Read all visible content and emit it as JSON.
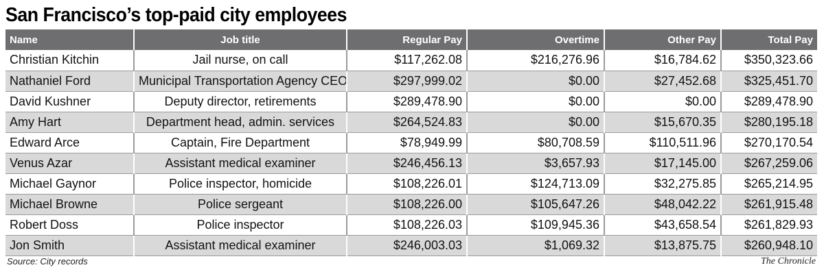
{
  "title": "San Francisco’s top-paid city employees",
  "table": {
    "headers": {
      "name": "Name",
      "job_title": "Job title",
      "regular_pay": "Regular Pay",
      "overtime": "Overtime",
      "other_pay": "Other Pay",
      "total_pay": "Total Pay"
    },
    "rows": [
      {
        "name": "Christian Kitchin",
        "job_title": "Jail nurse, on call",
        "regular_pay": "$117,262.08",
        "overtime": "$216,276.96",
        "other_pay": "$16,784.62",
        "total_pay": "$350,323.66"
      },
      {
        "name": "Nathaniel Ford",
        "job_title": "Municipal Transportation Agency CEO",
        "regular_pay": "$297,999.02",
        "overtime": "$0.00",
        "other_pay": "$27,452.68",
        "total_pay": "$325,451.70"
      },
      {
        "name": "David Kushner",
        "job_title": "Deputy director, retirements",
        "regular_pay": "$289,478.90",
        "overtime": "$0.00",
        "other_pay": "$0.00",
        "total_pay": "$289,478.90"
      },
      {
        "name": "Amy Hart",
        "job_title": "Department head, admin. services",
        "regular_pay": "$264,524.83",
        "overtime": "$0.00",
        "other_pay": "$15,670.35",
        "total_pay": "$280,195.18"
      },
      {
        "name": "Edward Arce",
        "job_title": "Captain, Fire Department",
        "regular_pay": "$78,949.99",
        "overtime": "$80,708.59",
        "other_pay": "$110,511.96",
        "total_pay": "$270,170.54"
      },
      {
        "name": "Venus Azar",
        "job_title": "Assistant medical examiner",
        "regular_pay": "$246,456.13",
        "overtime": "$3,657.93",
        "other_pay": "$17,145.00",
        "total_pay": "$267,259.06"
      },
      {
        "name": "Michael Gaynor",
        "job_title": "Police inspector, homicide",
        "regular_pay": "$108,226.01",
        "overtime": "$124,713.09",
        "other_pay": "$32,275.85",
        "total_pay": "$265,214.95"
      },
      {
        "name": "Michael Browne",
        "job_title": "Police sergeant",
        "regular_pay": "$108,226.00",
        "overtime": "$105,647.26",
        "other_pay": "$48,042.22",
        "total_pay": "$261,915.48"
      },
      {
        "name": "Robert Doss",
        "job_title": "Police inspector",
        "regular_pay": "$108,226.03",
        "overtime": "$109,945.36",
        "other_pay": "$43,658.54",
        "total_pay": "$261,829.93"
      },
      {
        "name": "Jon Smith",
        "job_title": "Assistant medical examiner",
        "regular_pay": "$246,003.03",
        "overtime": "$1,069.32",
        "other_pay": "$13,875.75",
        "total_pay": "$260,948.10"
      }
    ]
  },
  "footer": {
    "source": "Source: City records",
    "credit": "The Chronicle"
  },
  "colors": {
    "header_bg": "#6e6e70",
    "stripe_bg": "#d9d9d9"
  }
}
